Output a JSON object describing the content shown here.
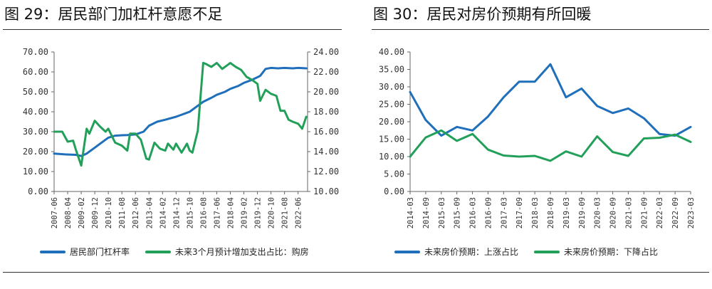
{
  "titles": {
    "left": "图 29：居民部门加杠杆意愿不足",
    "right": "图 30：居民对房价预期有所回暖"
  },
  "colors": {
    "blue": "#1f6fba",
    "green": "#22a05a",
    "axis": "#666666"
  },
  "chart_data": [
    {
      "type": "line",
      "dual_axis": true,
      "categories": [
        "2007-06",
        "2008-04",
        "2009-02",
        "2009-12",
        "2010-10",
        "2011-08",
        "2012-06",
        "2013-04",
        "2014-02",
        "2014-12",
        "2015-10",
        "2016-08",
        "2017-06",
        "2018-04",
        "2019-02",
        "2019-12",
        "2020-10",
        "2021-08",
        "2022-06"
      ],
      "y_left": {
        "ylim": [
          0,
          70
        ],
        "ticks": [
          "0.00",
          "10.00",
          "20.00",
          "30.00",
          "40.00",
          "50.00",
          "60.00",
          "70.00"
        ]
      },
      "y_right": {
        "ylim": [
          10,
          24
        ],
        "ticks": [
          "10.00",
          "12.00",
          "14.00",
          "16.00",
          "18.00",
          "20.00",
          "22.00",
          "24.00"
        ]
      },
      "series": [
        {
          "name": "居民部门杠杆率",
          "axis": "left",
          "color": "#1f6fba",
          "points": [
            [
              "2007-06",
              19
            ],
            [
              "2008-02",
              18.6
            ],
            [
              "2008-10",
              18.4
            ],
            [
              "2009-02",
              17.8
            ],
            [
              "2009-06",
              19
            ],
            [
              "2009-12",
              22
            ],
            [
              "2010-04",
              24
            ],
            [
              "2010-10",
              27
            ],
            [
              "2011-03",
              28
            ],
            [
              "2011-08",
              28.2
            ],
            [
              "2011-12",
              28.3
            ],
            [
              "2012-06",
              28.6
            ],
            [
              "2012-12",
              30
            ],
            [
              "2013-04",
              33
            ],
            [
              "2013-10",
              35
            ],
            [
              "2014-04",
              36
            ],
            [
              "2014-12",
              37.5
            ],
            [
              "2015-06",
              39
            ],
            [
              "2015-10",
              40
            ],
            [
              "2016-04",
              43
            ],
            [
              "2016-08",
              45
            ],
            [
              "2017-02",
              47
            ],
            [
              "2017-06",
              48.5
            ],
            [
              "2017-12",
              50
            ],
            [
              "2018-04",
              51.5
            ],
            [
              "2018-10",
              53
            ],
            [
              "2019-02",
              54.5
            ],
            [
              "2019-08",
              56
            ],
            [
              "2020-02",
              58
            ],
            [
              "2020-06",
              61.5
            ],
            [
              "2020-10",
              62
            ],
            [
              "2021-03",
              61.8
            ],
            [
              "2021-08",
              62
            ],
            [
              "2022-02",
              61.8
            ],
            [
              "2022-06",
              62
            ],
            [
              "2022-12",
              61.8
            ]
          ]
        },
        {
          "name": "未来3个月预计增加支出占比：购房",
          "axis": "right",
          "color": "#22a05a",
          "points": [
            [
              "2007-06",
              16
            ],
            [
              "2007-12",
              16
            ],
            [
              "2008-04",
              15
            ],
            [
              "2008-08",
              15.1
            ],
            [
              "2008-10",
              14.2
            ],
            [
              "2009-02",
              12.6
            ],
            [
              "2009-06",
              16.3
            ],
            [
              "2009-08",
              15.8
            ],
            [
              "2009-12",
              17.1
            ],
            [
              "2010-04",
              16.5
            ],
            [
              "2010-08",
              16
            ],
            [
              "2010-10",
              16.3
            ],
            [
              "2011-03",
              14.9
            ],
            [
              "2011-08",
              14.6
            ],
            [
              "2011-12",
              14.1
            ],
            [
              "2012-02",
              15.8
            ],
            [
              "2012-06",
              15.8
            ],
            [
              "2012-10",
              15.2
            ],
            [
              "2013-02",
              13.3
            ],
            [
              "2013-04",
              13.2
            ],
            [
              "2013-08",
              14.9
            ],
            [
              "2013-12",
              14.3
            ],
            [
              "2014-04",
              14.1
            ],
            [
              "2014-06",
              14.8
            ],
            [
              "2014-10",
              14.2
            ],
            [
              "2014-12",
              14.8
            ],
            [
              "2015-04",
              13.9
            ],
            [
              "2015-08",
              14.8
            ],
            [
              "2015-10",
              14.1
            ],
            [
              "2015-12",
              13.9
            ],
            [
              "2016-04",
              16.1
            ],
            [
              "2016-08",
              22.9
            ],
            [
              "2016-10",
              22.8
            ],
            [
              "2017-02",
              22.5
            ],
            [
              "2017-06",
              22.9
            ],
            [
              "2017-10",
              22.3
            ],
            [
              "2018-04",
              22.9
            ],
            [
              "2018-08",
              22.5
            ],
            [
              "2018-12",
              22.2
            ],
            [
              "2019-04",
              21.5
            ],
            [
              "2019-08",
              21.2
            ],
            [
              "2019-12",
              20.8
            ],
            [
              "2020-02",
              19.1
            ],
            [
              "2020-06",
              20.2
            ],
            [
              "2020-10",
              19.8
            ],
            [
              "2021-02",
              19.6
            ],
            [
              "2021-05",
              18.1
            ],
            [
              "2021-08",
              18.1
            ],
            [
              "2021-11",
              17.2
            ],
            [
              "2022-02",
              17
            ],
            [
              "2022-06",
              16.8
            ],
            [
              "2022-09",
              16.3
            ],
            [
              "2022-12",
              17.5
            ]
          ]
        }
      ]
    },
    {
      "type": "line",
      "categories": [
        "2014-03",
        "2014-09",
        "2015-03",
        "2015-09",
        "2016-03",
        "2016-09",
        "2017-03",
        "2017-09",
        "2018-03",
        "2018-09",
        "2019-03",
        "2019-09",
        "2020-03",
        "2020-09",
        "2021-03",
        "2021-09",
        "2022-03",
        "2022-09",
        "2023-03"
      ],
      "ylim": [
        0,
        40
      ],
      "ticks": [
        "0.00",
        "5.00",
        "10.00",
        "15.00",
        "20.00",
        "25.00",
        "30.00",
        "35.00",
        "40.00"
      ],
      "series": [
        {
          "name": "未来房价预期：上涨占比",
          "color": "#1f6fba",
          "values": [
            28.5,
            20.5,
            16,
            18.5,
            17.5,
            21.5,
            27,
            31.5,
            31.5,
            36.5,
            27,
            29.5,
            24.5,
            22.5,
            23.8,
            21,
            16.5,
            16,
            18.5
          ]
        },
        {
          "name": "未来房价预期：下降占比",
          "color": "#22a05a",
          "values": [
            10,
            15.5,
            17.5,
            14.5,
            16.5,
            12,
            10.3,
            10,
            10.2,
            8.8,
            11.5,
            10,
            15.8,
            11.3,
            10.2,
            15.2,
            15.4,
            16.3,
            14.2
          ]
        }
      ]
    }
  ]
}
